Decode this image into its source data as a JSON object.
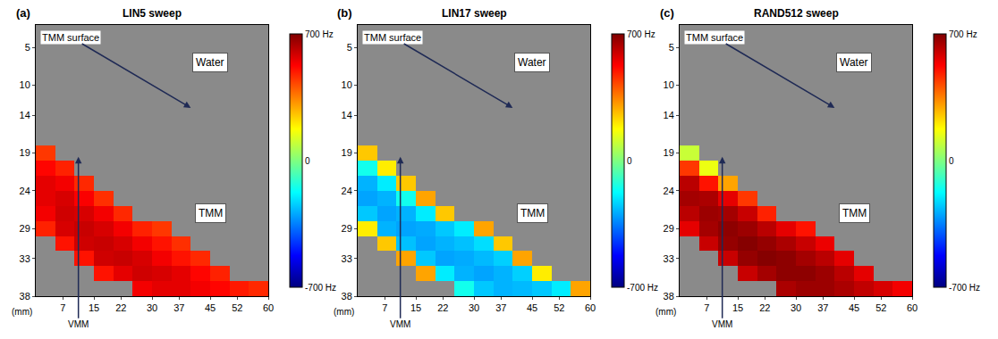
{
  "chart_data": [
    {
      "type": "heatmap",
      "title": "LIN5 sweep",
      "panel": "(a)",
      "xlabel": "(mm)",
      "annotations": [
        "TMM surface",
        "Water",
        "TMM",
        "VMM"
      ],
      "grid": false,
      "xlim": [
        0,
        60
      ],
      "xticks": [
        7,
        15,
        22,
        30,
        37,
        45,
        52,
        60
      ],
      "ylim": [
        38,
        2
      ],
      "yticks": [
        5,
        10,
        14,
        19,
        24,
        29,
        33,
        38
      ],
      "x": [
        2.5,
        7.5,
        12.5,
        17.5,
        22.5,
        27.5,
        32.5,
        37.5,
        42.5,
        47.5,
        52.5,
        57.5
      ],
      "y": [
        19,
        21,
        23,
        25,
        27,
        29,
        31,
        33,
        35,
        37
      ],
      "z": [
        [
          450,
          null,
          null,
          null,
          null,
          null,
          null,
          null,
          null,
          null,
          null,
          null
        ],
        [
          520,
          480,
          null,
          null,
          null,
          null,
          null,
          null,
          null,
          null,
          null,
          null
        ],
        [
          560,
          540,
          470,
          null,
          null,
          null,
          null,
          null,
          null,
          null,
          null,
          null
        ],
        [
          560,
          580,
          530,
          460,
          null,
          null,
          null,
          null,
          null,
          null,
          null,
          null
        ],
        [
          540,
          590,
          580,
          540,
          470,
          null,
          null,
          null,
          null,
          null,
          null,
          null
        ],
        [
          480,
          580,
          600,
          580,
          540,
          480,
          450,
          null,
          null,
          null,
          null,
          null
        ],
        [
          null,
          500,
          590,
          600,
          580,
          540,
          500,
          460,
          null,
          null,
          null,
          null
        ],
        [
          null,
          null,
          500,
          590,
          600,
          580,
          540,
          500,
          470,
          null,
          null,
          null
        ],
        [
          null,
          null,
          null,
          500,
          560,
          590,
          580,
          560,
          520,
          480,
          null,
          null
        ],
        [
          null,
          null,
          null,
          null,
          null,
          540,
          560,
          560,
          540,
          520,
          490,
          470
        ]
      ],
      "colorbar": {
        "range": [
          -700,
          700
        ],
        "ticks": [
          {
            "value": -700,
            "label": "-700 Hz"
          },
          0,
          {
            "value": 700,
            "label": "700 Hz"
          }
        ]
      }
    },
    {
      "type": "heatmap",
      "title": "LIN17 sweep",
      "panel": "(b)",
      "xlabel": "(mm)",
      "annotations": [
        "TMM surface",
        "Water",
        "TMM",
        "VMM"
      ],
      "grid": false,
      "xlim": [
        0,
        60
      ],
      "xticks": [
        7,
        15,
        22,
        30,
        37,
        45,
        52,
        60
      ],
      "ylim": [
        38,
        2
      ],
      "yticks": [
        5,
        10,
        14,
        19,
        24,
        29,
        33,
        38
      ],
      "x": [
        2.5,
        7.5,
        12.5,
        17.5,
        22.5,
        27.5,
        32.5,
        37.5,
        42.5,
        47.5,
        52.5,
        57.5
      ],
      "y": [
        19,
        21,
        23,
        25,
        27,
        29,
        31,
        33,
        35,
        37
      ],
      "z": [
        [
          250,
          null,
          null,
          null,
          null,
          null,
          null,
          null,
          null,
          null,
          null,
          null
        ],
        [
          -150,
          200,
          null,
          null,
          null,
          null,
          null,
          null,
          null,
          null,
          null,
          null
        ],
        [
          -280,
          -200,
          250,
          null,
          null,
          null,
          null,
          null,
          null,
          null,
          null,
          null
        ],
        [
          -300,
          -280,
          -150,
          300,
          null,
          null,
          null,
          null,
          null,
          null,
          null,
          null
        ],
        [
          -250,
          -300,
          -280,
          -200,
          250,
          null,
          null,
          null,
          null,
          null,
          null,
          null
        ],
        [
          200,
          -280,
          -300,
          -290,
          -250,
          -200,
          300,
          null,
          null,
          null,
          null,
          null
        ],
        [
          null,
          250,
          -260,
          -300,
          -280,
          -260,
          -220,
          250,
          null,
          null,
          null,
          null
        ],
        [
          null,
          null,
          300,
          -250,
          -300,
          -290,
          -270,
          -240,
          300,
          null,
          null,
          null
        ],
        [
          null,
          null,
          null,
          300,
          -200,
          -280,
          -300,
          -280,
          -240,
          200,
          null,
          null
        ],
        [
          null,
          null,
          null,
          null,
          null,
          -150,
          -250,
          -280,
          -270,
          -250,
          -200,
          300
        ]
      ],
      "colorbar": {
        "range": [
          -700,
          700
        ],
        "ticks": [
          {
            "value": -700,
            "label": "-700 Hz"
          },
          0,
          {
            "value": 700,
            "label": "700 Hz"
          }
        ]
      }
    },
    {
      "type": "heatmap",
      "title": "RAND512 sweep",
      "panel": "(c)",
      "xlabel": "(mm)",
      "annotations": [
        "TMM surface",
        "Water",
        "TMM",
        "VMM"
      ],
      "grid": false,
      "xlim": [
        0,
        60
      ],
      "xticks": [
        7,
        15,
        22,
        30,
        37,
        45,
        52,
        60
      ],
      "ylim": [
        38,
        2
      ],
      "yticks": [
        5,
        10,
        14,
        19,
        24,
        29,
        33,
        38
      ],
      "x": [
        2.5,
        7.5,
        12.5,
        17.5,
        22.5,
        27.5,
        32.5,
        37.5,
        42.5,
        47.5,
        52.5,
        57.5
      ],
      "y": [
        19,
        21,
        23,
        25,
        27,
        29,
        31,
        33,
        35,
        37
      ],
      "z": [
        [
          100,
          null,
          null,
          null,
          null,
          null,
          null,
          null,
          null,
          null,
          null,
          null
        ],
        [
          450,
          150,
          null,
          null,
          null,
          null,
          null,
          null,
          null,
          null,
          null,
          null
        ],
        [
          620,
          500,
          300,
          null,
          null,
          null,
          null,
          null,
          null,
          null,
          null,
          null
        ],
        [
          650,
          640,
          560,
          450,
          null,
          null,
          null,
          null,
          null,
          null,
          null,
          null
        ],
        [
          620,
          660,
          650,
          600,
          480,
          null,
          null,
          null,
          null,
          null,
          null,
          null
        ],
        [
          560,
          650,
          680,
          660,
          620,
          560,
          500,
          null,
          null,
          null,
          null,
          null
        ],
        [
          null,
          600,
          670,
          690,
          670,
          640,
          600,
          550,
          null,
          null,
          null,
          null
        ],
        [
          null,
          null,
          600,
          670,
          690,
          680,
          650,
          620,
          560,
          null,
          null,
          null
        ],
        [
          null,
          null,
          null,
          600,
          650,
          680,
          680,
          660,
          620,
          560,
          null,
          null
        ],
        [
          null,
          null,
          null,
          null,
          null,
          640,
          660,
          660,
          640,
          610,
          580,
          540
        ]
      ],
      "colorbar": {
        "range": [
          -700,
          700
        ],
        "ticks": [
          {
            "value": -700,
            "label": "-700 Hz"
          },
          0,
          {
            "value": 700,
            "label": "700 Hz"
          }
        ]
      }
    }
  ]
}
